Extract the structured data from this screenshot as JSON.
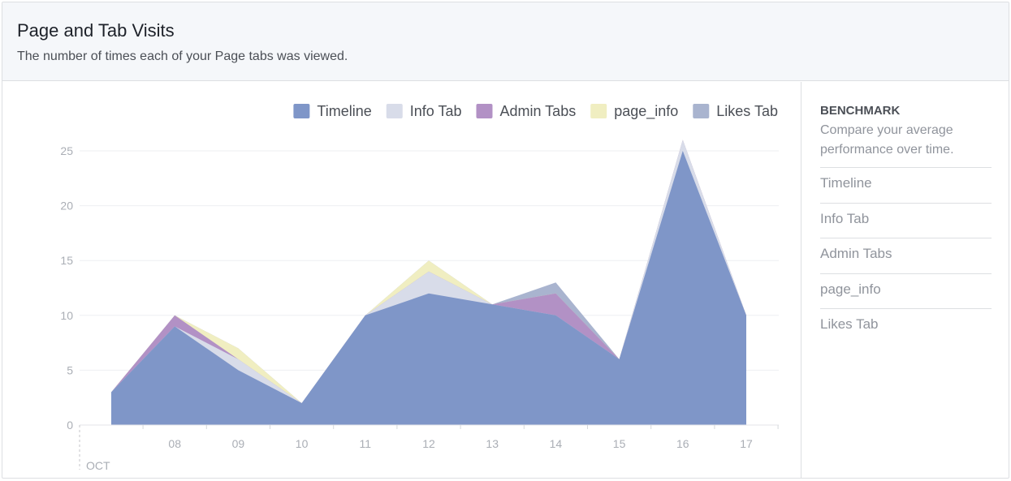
{
  "header": {
    "title": "Page and Tab Visits",
    "subtitle": "The number of times each of your Page tabs was viewed."
  },
  "benchmark": {
    "title": "BENCHMARK",
    "description": "Compare your average performance over time.",
    "items": [
      "Timeline",
      "Info Tab",
      "Admin Tabs",
      "page_info",
      "Likes Tab"
    ]
  },
  "chart_data": {
    "type": "area",
    "stacked": true,
    "x": [
      7,
      8,
      9,
      10,
      11,
      12,
      13,
      14,
      15,
      16,
      17
    ],
    "x_tick_labels": [
      "08",
      "09",
      "10",
      "11",
      "12",
      "13",
      "14",
      "15",
      "16",
      "17"
    ],
    "x_tick_values": [
      8,
      9,
      10,
      11,
      12,
      13,
      14,
      15,
      16,
      17
    ],
    "x_month_label": "OCT",
    "ylim": [
      0,
      25
    ],
    "y_ticks": [
      0,
      5,
      10,
      15,
      20,
      25
    ],
    "grid": true,
    "legend": "top-right",
    "series": [
      {
        "name": "Timeline",
        "color": "#7f96c8",
        "values": [
          3,
          9,
          5,
          2,
          10,
          12,
          11,
          10,
          6,
          25,
          10
        ]
      },
      {
        "name": "Info Tab",
        "color": "#d8dce9",
        "values": [
          0,
          0,
          1,
          0,
          0,
          2,
          0,
          0,
          0,
          1,
          0
        ]
      },
      {
        "name": "Admin Tabs",
        "color": "#b291c5",
        "values": [
          0,
          1,
          0,
          0,
          0,
          0,
          0,
          2,
          0,
          0,
          0
        ]
      },
      {
        "name": "page_info",
        "color": "#f0eec1",
        "values": [
          0,
          0,
          1,
          0,
          0,
          1,
          0,
          0,
          0,
          0,
          0
        ]
      },
      {
        "name": "Likes Tab",
        "color": "#a9b4cf",
        "values": [
          0,
          0,
          0,
          0,
          0,
          0,
          0,
          1,
          0,
          0,
          0
        ]
      }
    ]
  }
}
